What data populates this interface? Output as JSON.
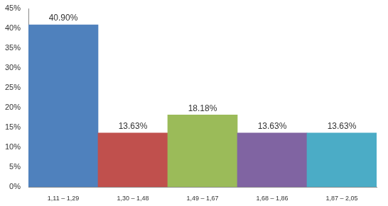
{
  "chart_data": {
    "type": "bar",
    "categories": [
      "1,11 – 1,29",
      "1,30 – 1,48",
      "1,49 – 1,67",
      "1,68 – 1,86",
      "1,87 – 2,05"
    ],
    "values": [
      40.9,
      13.63,
      18.18,
      13.63,
      13.63
    ],
    "value_labels": [
      "40.90%",
      "13.63%",
      "18.18%",
      "13.63%",
      "13.63%"
    ],
    "colors": [
      "#4f81bd",
      "#c0504d",
      "#9bbb59",
      "#8064a2",
      "#4bacc6"
    ],
    "ylim": [
      0,
      45
    ],
    "yticks": [
      {
        "value": 0,
        "label": "0%"
      },
      {
        "value": 5,
        "label": "5%"
      },
      {
        "value": 10,
        "label": "10%"
      },
      {
        "value": 15,
        "label": "15%"
      },
      {
        "value": 20,
        "label": "20%"
      },
      {
        "value": 25,
        "label": "25%"
      },
      {
        "value": 30,
        "label": "30%"
      },
      {
        "value": 35,
        "label": "35%"
      },
      {
        "value": 40,
        "label": "40%"
      },
      {
        "value": 45,
        "label": "45%"
      }
    ],
    "grid": false,
    "data_labels": true
  }
}
